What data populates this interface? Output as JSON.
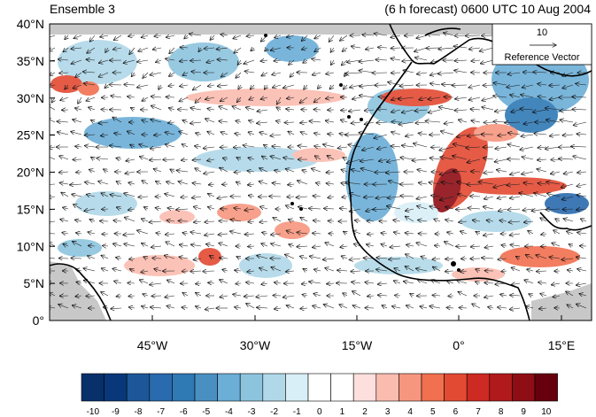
{
  "header": {
    "left_title": "Ensemble 3",
    "right_title": "(6 h forecast) 0600 UTC 10 Aug 2004"
  },
  "map": {
    "lat_labels": [
      "40°N",
      "35°N",
      "30°N",
      "25°N",
      "20°N",
      "15°N",
      "10°N",
      "5°N",
      "0°"
    ],
    "lon_labels": [
      "45°W",
      "30°W",
      "15°W",
      "0°",
      "15°E"
    ],
    "reference_vector": {
      "value": "10",
      "label": "Reference Vector"
    },
    "land_color": "#c8c8c8",
    "coast_color": "#000000"
  },
  "colorbar": {
    "labels": [
      "-10",
      "-9",
      "-8",
      "-7",
      "-6",
      "-5",
      "-4",
      "-3",
      "-2",
      "-1",
      "0",
      "1",
      "2",
      "3",
      "4",
      "5",
      "6",
      "7",
      "8",
      "9",
      "10"
    ],
    "colors": [
      "#08306b",
      "#08387a",
      "#1d5799",
      "#2a6aae",
      "#2f79b5",
      "#4a8fc2",
      "#6baed6",
      "#8cc4de",
      "#b0d8e8",
      "#d8eff7",
      "#ffffff",
      "#ffffff",
      "#fde0dd",
      "#fbbcb0",
      "#f7967f",
      "#f1704f",
      "#e34a33",
      "#cc2a22",
      "#b11a1c",
      "#8f0d15",
      "#67000d"
    ]
  }
}
